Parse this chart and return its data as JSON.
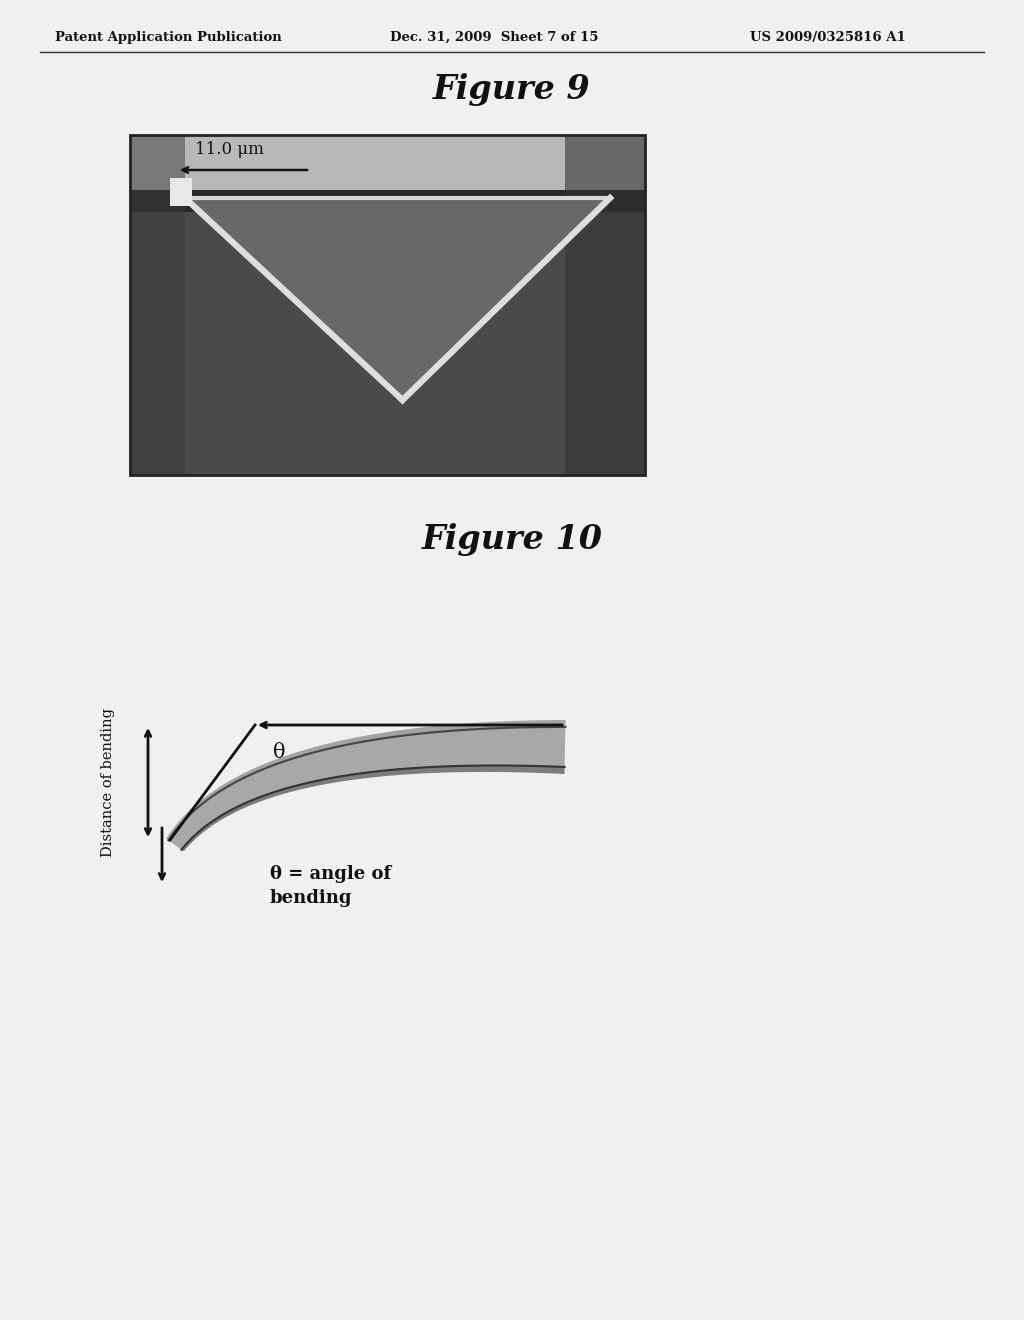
{
  "page_header_left": "Patent Application Publication",
  "page_header_center": "Dec. 31, 2009  Sheet 7 of 15",
  "page_header_right": "US 2009/0325816 A1",
  "fig9_title": "Figure 9",
  "fig10_title": "Figure 10",
  "measurement_label": "11.0 μm",
  "angle_label": "θ",
  "angle_eq_label": "θ = angle of\nbending",
  "distance_label": "Distance of bending",
  "bg_color": "#f0f0f0",
  "sem_bg": "#505050",
  "sem_top_band": "#c0c0c0",
  "sem_dark_band": "#303030",
  "tri_fill": "#686868",
  "tri_edge": "#e0e0e0",
  "cantilever_fill": "#aaaaaa",
  "cantilever_dark": "#555555",
  "arrow_color": "#111111"
}
